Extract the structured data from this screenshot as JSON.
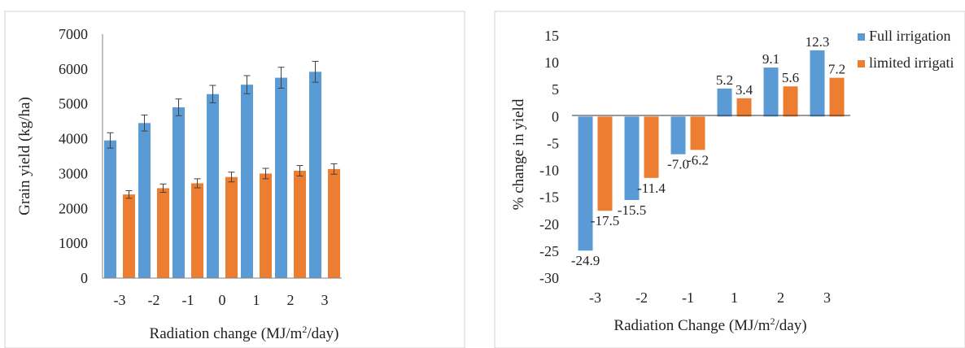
{
  "colors": {
    "full": "#5b9bd5",
    "limited": "#ed7d31",
    "axis": "#595959",
    "text": "#222222"
  },
  "chart_data": [
    {
      "type": "bar",
      "title": "",
      "xlabel_parts": [
        "Radiation change (MJ/m",
        "2",
        "/day)"
      ],
      "ylabel": "Grain yield (kg/ha)",
      "categories": [
        "-3",
        "-2",
        "-1",
        "0",
        "1",
        "2",
        "3"
      ],
      "ylim": [
        0,
        7000
      ],
      "yticks": [
        0,
        1000,
        2000,
        3000,
        4000,
        5000,
        6000,
        7000
      ],
      "grid": false,
      "legend": "none",
      "series": [
        {
          "color": "#5b9bd5",
          "values": [
            3950,
            4450,
            4900,
            5280,
            5550,
            5750,
            5920
          ],
          "errors": [
            220,
            230,
            240,
            250,
            260,
            300,
            300
          ]
        },
        {
          "color": "#ed7d31",
          "values": [
            2400,
            2580,
            2720,
            2900,
            3000,
            3080,
            3130
          ],
          "errors": [
            110,
            120,
            130,
            140,
            150,
            150,
            150
          ]
        }
      ]
    },
    {
      "type": "bar",
      "title": "",
      "xlabel_parts": [
        "Radiation Change (MJ/m",
        "2",
        "/day)"
      ],
      "ylabel": "% change in yield",
      "categories": [
        "-3",
        "-2",
        "-1",
        "1",
        "2",
        "3"
      ],
      "ylim": [
        -30,
        15
      ],
      "yticks": [
        15,
        10,
        5,
        0,
        -5,
        -10,
        -15,
        -20,
        -25,
        -30
      ],
      "grid": false,
      "legend": "right",
      "series": [
        {
          "name": "Full irrigation",
          "color": "#5b9bd5",
          "values": [
            -24.9,
            -15.5,
            -7.0,
            5.2,
            9.1,
            12.3
          ],
          "labels": [
            "-24.9",
            "-15.5",
            "-7.0",
            "5.2",
            "9.1",
            "12.3"
          ]
        },
        {
          "name": "limited irrigation",
          "display_name": "limited irrigati",
          "color": "#ed7d31",
          "values": [
            -17.5,
            -11.4,
            -6.2,
            3.4,
            5.6,
            7.2
          ],
          "labels": [
            "-17.5",
            "-11.4",
            "-6.2",
            "3.4",
            "5.6",
            "7.2"
          ]
        }
      ]
    }
  ]
}
